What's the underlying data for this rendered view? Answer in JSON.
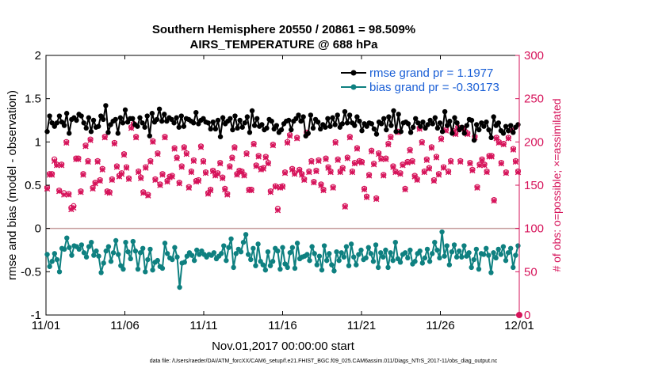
{
  "chart_data": {
    "type": "line",
    "title_line1": "Southern Hemisphere 20550 / 20861 = 98.509%",
    "title_line2": "AIRS_TEMPERATURE @ 688 hPa",
    "xlabel": "Nov.01,2017 00:00:00 start",
    "ylabel": "rmse and bias (model - observation)",
    "ylabel_right": "# of obs: o=possible; ×=assimilated",
    "ylim": [
      -1,
      2
    ],
    "ylim_right": [
      0,
      300
    ],
    "xlim": [
      0,
      30
    ],
    "x_ticks": [
      0,
      5,
      10,
      15,
      20,
      25,
      30
    ],
    "x_tick_labels": [
      "11/01",
      "11/06",
      "11/11",
      "11/16",
      "11/21",
      "11/26",
      "12/01"
    ],
    "y_ticks": [
      -1,
      -0.5,
      0,
      0.5,
      1,
      1.5,
      2
    ],
    "y_tick_labels": [
      "-1",
      "-0.5",
      "0",
      "0.5",
      "1",
      "1.5",
      "2"
    ],
    "y_ticks_right": [
      0,
      50,
      100,
      150,
      200,
      250,
      300
    ],
    "y_tick_labels_right": [
      "0",
      "50",
      "100",
      "150",
      "200",
      "250",
      "300"
    ],
    "zero_line": 0,
    "series": [
      {
        "name": "rmse grand pr = 1.1977",
        "color": "#000000",
        "values": [
          1.12,
          1.3,
          1.22,
          1.18,
          1.22,
          1.3,
          1.23,
          1.19,
          1.33,
          1.1,
          1.26,
          1.28,
          1.25,
          1.32,
          1.3,
          1.22,
          1.16,
          1.28,
          1.12,
          1.25,
          1.17,
          1.18,
          1.3,
          1.26,
          1.42,
          1.11,
          1.2,
          1.24,
          1.26,
          1.1,
          1.28,
          1.22,
          1.37,
          1.23,
          1.27,
          1.27,
          1.2,
          1.18,
          1.28,
          1.22,
          1.17,
          1.3,
          1.07,
          1.33,
          1.23,
          1.26,
          1.38,
          1.24,
          1.32,
          1.24,
          1.28,
          1.26,
          1.22,
          1.28,
          1.17,
          1.3,
          1.18,
          1.27,
          1.26,
          1.24,
          1.22,
          1.34,
          1.21,
          1.25,
          1.27,
          1.23,
          1.22,
          1.15,
          1.23,
          1.15,
          1.25,
          1.06,
          1.28,
          1.21,
          1.24,
          1.27,
          1.14,
          1.3,
          1.16,
          1.25,
          1.17,
          1.22,
          1.29,
          1.11,
          1.36,
          1.19,
          1.27,
          1.18,
          1.2,
          1.14,
          1.16,
          1.26,
          1.24,
          1.15,
          1.19,
          1.11,
          1.14,
          1.21,
          1.24,
          1.25,
          1.14,
          1.24,
          1.27,
          1.31,
          1.24,
          1.29,
          1.07,
          1.1,
          1.31,
          1.16,
          1.26,
          1.23,
          1.15,
          1.2,
          1.17,
          1.27,
          1.18,
          1.28,
          1.2,
          1.31,
          1.17,
          1.21,
          1.35,
          1.22,
          1.31,
          1.22,
          1.19,
          1.29,
          1.24,
          1.13,
          1.21,
          1.18,
          1.22,
          1.21,
          1.15,
          1.09,
          1.23,
          1.21,
          1.27,
          1.14,
          1.29,
          1.19,
          1.36,
          1.12,
          1.32,
          1.12,
          1.22,
          1.23,
          1.21,
          1.11,
          1.17,
          1.27,
          1.22,
          1.18,
          1.23,
          1.16,
          1.2,
          1.25,
          1.21,
          1.28,
          1.16,
          1.22,
          1.12,
          1.35,
          1.19,
          1.24,
          1.1,
          1.28,
          1.22,
          1.14,
          1.17,
          1.1,
          1.19,
          1.26,
          1.25,
          1.02,
          1.2,
          1.14,
          1.22,
          1.18,
          1.23,
          1.14,
          1.05,
          1.29,
          1.19,
          1.22,
          1.13,
          1.1,
          1.18,
          1.13,
          1.19,
          1.11,
          1.17,
          1.2
        ]
      },
      {
        "name": "bias grand pr = -0.30173",
        "color": "#0e8080",
        "values": [
          -0.3,
          -0.44,
          -0.38,
          -0.29,
          -0.36,
          -0.5,
          -0.23,
          -0.24,
          -0.11,
          -0.22,
          -0.31,
          -0.2,
          -0.21,
          -0.24,
          -0.19,
          -0.28,
          -0.33,
          -0.21,
          -0.16,
          -0.31,
          -0.26,
          -0.32,
          -0.51,
          -0.4,
          -0.26,
          -0.21,
          -0.38,
          -0.28,
          -0.14,
          -0.3,
          -0.43,
          -0.47,
          -0.16,
          -0.27,
          -0.35,
          -0.15,
          -0.26,
          -0.47,
          -0.28,
          -0.23,
          -0.5,
          -0.36,
          -0.24,
          -0.48,
          -0.39,
          -0.37,
          -0.44,
          -0.46,
          -0.17,
          -0.29,
          -0.34,
          -0.36,
          -0.22,
          -0.33,
          -0.68,
          -0.4,
          -0.39,
          -0.32,
          -0.28,
          -0.31,
          -0.37,
          -0.25,
          -0.3,
          -0.26,
          -0.3,
          -0.33,
          -0.3,
          -0.31,
          -0.28,
          -0.35,
          -0.32,
          -0.29,
          -0.2,
          -0.37,
          -0.22,
          -0.12,
          -0.45,
          -0.29,
          -0.24,
          -0.27,
          -0.16,
          -0.07,
          -0.3,
          -0.36,
          -0.23,
          -0.43,
          -0.18,
          -0.38,
          -0.42,
          -0.48,
          -0.27,
          -0.43,
          -0.38,
          -0.23,
          -0.26,
          -0.47,
          -0.22,
          -0.41,
          -0.45,
          -0.28,
          -0.22,
          -0.46,
          -0.17,
          -0.35,
          -0.33,
          -0.32,
          -0.3,
          -0.37,
          -0.21,
          -0.29,
          -0.42,
          -0.32,
          -0.48,
          -0.2,
          -0.37,
          -0.29,
          -0.42,
          -0.49,
          -0.27,
          -0.37,
          -0.28,
          -0.33,
          -0.21,
          -0.43,
          -0.18,
          -0.33,
          -0.42,
          -0.3,
          -0.25,
          -0.36,
          -0.34,
          -0.22,
          -0.29,
          -0.38,
          -0.19,
          -0.45,
          -0.28,
          -0.33,
          -0.25,
          -0.45,
          -0.28,
          -0.37,
          -0.16,
          -0.35,
          -0.39,
          -0.3,
          -0.28,
          -0.34,
          -0.25,
          -0.41,
          -0.38,
          -0.29,
          -0.26,
          -0.4,
          -0.34,
          -0.24,
          -0.38,
          -0.29,
          -0.16,
          -0.25,
          -0.34,
          -0.04,
          -0.32,
          -0.2,
          -0.42,
          -0.27,
          -0.19,
          -0.33,
          -0.26,
          -0.33,
          -0.2,
          -0.32,
          -0.28,
          -0.45,
          -0.36,
          -0.24,
          -0.47,
          -0.29,
          -0.3,
          -0.23,
          -0.31,
          -0.51,
          -0.28,
          -0.34,
          -0.24,
          -0.3,
          -0.21,
          -0.37,
          -0.28,
          -0.23,
          -0.45,
          -0.31,
          -0.2
        ]
      }
    ],
    "obs_series": [
      {
        "name": "possible",
        "marker": "o",
        "axis": "right",
        "color": "#d6135a",
        "values": [
          147,
          163,
          163,
          180,
          174,
          144,
          174,
          141,
          200,
          140,
          124,
          126,
          181,
          181,
          143,
          163,
          196,
          178,
          203,
          147,
          153,
          178,
          156,
          169,
          206,
          143,
          142,
          157,
          199,
          172,
          161,
          164,
          186,
          171,
          158,
          217,
          221,
          206,
          166,
          159,
          142,
          171,
          139,
          178,
          201,
          157,
          187,
          151,
          163,
          206,
          155,
          160,
          161,
          193,
          182,
          153,
          172,
          194,
          187,
          148,
          166,
          179,
          155,
          156,
          195,
          178,
          165,
          141,
          145,
          167,
          162,
          164,
          176,
          159,
          146,
          140,
          172,
          182,
          194,
          163,
          167,
          166,
          162,
          187,
          145,
          145,
          198,
          173,
          184,
          169,
          170,
          183,
          176,
          143,
          197,
          149,
          123,
          148,
          149,
          165,
          200,
          208,
          169,
          164,
          205,
          168,
          163,
          157,
          211,
          166,
          178,
          154,
          167,
          179,
          151,
          145,
          181,
          171,
          166,
          148,
          200,
          180,
          166,
          170,
          126,
          182,
          206,
          166,
          176,
          193,
          178,
          177,
          146,
          137,
          162,
          190,
          175,
          135,
          187,
          181,
          162,
          181,
          198,
          206,
          172,
          166,
          212,
          164,
          174,
          146,
          177,
          191,
          178,
          161,
          157,
          216,
          200,
          166,
          180,
          170,
          194,
          156,
          183,
          163,
          204,
          171,
          214,
          166,
          178,
          213,
          210,
          217,
          178,
          216,
          212,
          210,
          176,
          168,
          206,
          148,
          174,
          180,
          174,
          166,
          184,
          184,
          133,
          205,
          200,
          176,
          198,
          165,
          205,
          214,
          192,
          178,
          166
        ]
      },
      {
        "name": "assimilated",
        "marker": "x",
        "axis": "right",
        "color": "#d6135a",
        "values": [
          146,
          162,
          162,
          178,
          173,
          143,
          173,
          139,
          199,
          139,
          122,
          124,
          180,
          180,
          142,
          162,
          195,
          177,
          202,
          146,
          152,
          177,
          155,
          168,
          205,
          142,
          141,
          156,
          198,
          171,
          160,
          163,
          185,
          170,
          157,
          216,
          220,
          205,
          165,
          158,
          141,
          170,
          138,
          177,
          200,
          156,
          186,
          150,
          162,
          205,
          154,
          159,
          160,
          192,
          181,
          152,
          171,
          193,
          186,
          147,
          165,
          178,
          154,
          155,
          194,
          177,
          164,
          140,
          144,
          166,
          161,
          163,
          175,
          158,
          145,
          139,
          171,
          181,
          193,
          162,
          166,
          165,
          161,
          186,
          144,
          144,
          197,
          172,
          183,
          168,
          169,
          182,
          175,
          142,
          196,
          148,
          121,
          147,
          148,
          164,
          199,
          207,
          168,
          163,
          204,
          167,
          162,
          156,
          210,
          165,
          177,
          153,
          166,
          178,
          150,
          144,
          180,
          170,
          165,
          147,
          199,
          179,
          165,
          169,
          125,
          181,
          205,
          165,
          175,
          192,
          177,
          176,
          145,
          136,
          161,
          189,
          174,
          134,
          186,
          180,
          161,
          180,
          197,
          205,
          171,
          165,
          211,
          163,
          173,
          145,
          176,
          190,
          177,
          160,
          156,
          215,
          199,
          165,
          179,
          169,
          193,
          155,
          182,
          162,
          203,
          170,
          213,
          165,
          177,
          212,
          209,
          216,
          177,
          215,
          211,
          209,
          175,
          167,
          205,
          147,
          173,
          179,
          173,
          165,
          183,
          183,
          132,
          204,
          199,
          175,
          197,
          164,
          204,
          213,
          191,
          177,
          165
        ]
      }
    ]
  },
  "footer": {
    "data_file": "data file: /Users/raeder/DAI/ATM_forcXX/CAM6_setup/f.e21.FHIST_BGC.f09_025.CAM6assim.011/Diags_NTrS_2017-11/obs_diag_output.nc"
  },
  "colors": {
    "rmse": "#000000",
    "bias": "#0e8080",
    "obs": "#d6135a",
    "legend_text": "#1a5fd6",
    "zero_line": "#c8a0a0"
  }
}
